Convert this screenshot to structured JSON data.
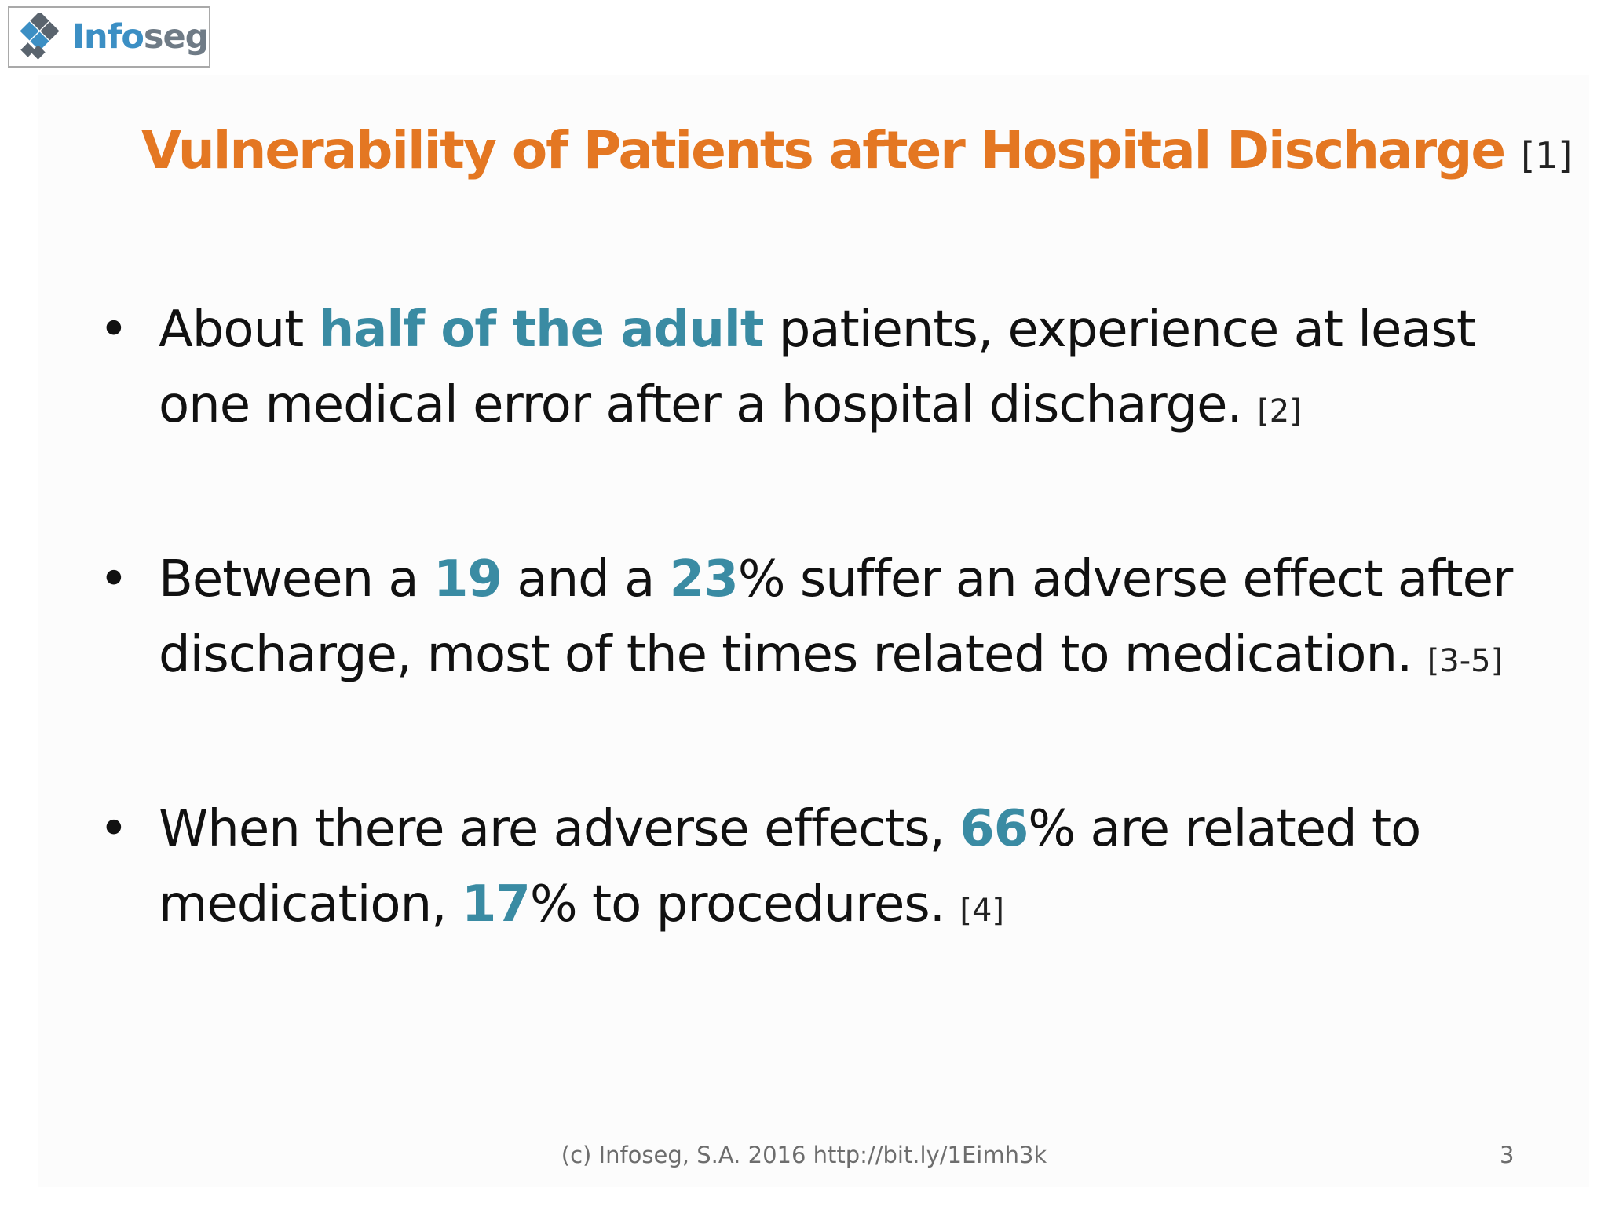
{
  "logo": {
    "text_part1": "Info",
    "text_part2": "seg",
    "icon": "diamond-grid-logo-icon",
    "colors": {
      "blue": "#3c8fc4",
      "gray": "#6f7b86"
    }
  },
  "title": {
    "text": "Vulnerability of Patients after Hospital Discharge",
    "ref": "[1]",
    "color": "#e47722"
  },
  "bullets": [
    {
      "before": "About ",
      "highlight": "half of the adult",
      "after": " patients, experience at least one medical error after a hospital discharge.",
      "citation": "[2]"
    },
    {
      "before": "Between a ",
      "highlight1": "19",
      "middle": " and a ",
      "highlight2": "23",
      "after": "% suffer an adverse effect after discharge, most of the times related to medication.",
      "citation": "[3-5]"
    },
    {
      "before": "When there are adverse effects, ",
      "highlight1": "66",
      "middle": "% are related to medication, ",
      "highlight2": "17",
      "after": "% to procedures.",
      "citation": "[4]"
    }
  ],
  "bullet_symbol": "•",
  "highlight_color": "#3a8ba3",
  "footer": {
    "text": "(c) Infoseg, S.A. 2016  http://bit.ly/1Eimh3k",
    "page_number": "3"
  }
}
